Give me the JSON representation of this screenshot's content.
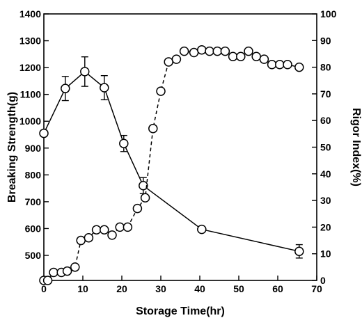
{
  "chart_data": {
    "type": "line",
    "xlabel": "Storage Time(hr)",
    "ylabel_left": "Breaking Strength(g)",
    "ylabel_right": "Rigor Index(%)",
    "xlim": [
      0,
      70
    ],
    "ylim_left": [
      500,
      1400
    ],
    "ylim_right": [
      0,
      100
    ],
    "x_ticks": [
      0,
      10,
      20,
      30,
      40,
      50,
      60,
      70
    ],
    "y_left_ticks": [
      500,
      600,
      700,
      800,
      900,
      1000,
      1100,
      1200,
      1300,
      1400
    ],
    "y_right_ticks": [
      0,
      10,
      20,
      30,
      40,
      50,
      60,
      70,
      80,
      90,
      100
    ],
    "grid": false,
    "series": [
      {
        "axis": "left",
        "style": "solid",
        "marker": "open-circle",
        "x": [
          0,
          5.5,
          10.5,
          15.5,
          20.5,
          25.5,
          40.5,
          65.5
        ],
        "y": [
          955,
          1122,
          1185,
          1125,
          917,
          760,
          597,
          515
        ],
        "err": [
          0,
          45,
          55,
          45,
          30,
          30,
          0,
          25
        ]
      },
      {
        "axis": "right",
        "style": "dashed",
        "marker": "open-circle",
        "x": [
          0,
          1,
          2.5,
          4.5,
          6,
          8,
          9.5,
          11.5,
          13.5,
          15.5,
          17.5,
          19.5,
          21.5,
          24,
          26,
          28,
          30,
          32,
          34,
          36,
          38.5,
          40.5,
          42.5,
          44.5,
          46.5,
          48.5,
          50.5,
          52.5,
          54.5,
          56.5,
          58.5,
          60.5,
          62.5,
          65.5
        ],
        "y": [
          0,
          0,
          3,
          3,
          3.5,
          5,
          15,
          16,
          19,
          19,
          17,
          20,
          20,
          27,
          31,
          57,
          71,
          82,
          83,
          86,
          85.5,
          86.5,
          86,
          86,
          86,
          84,
          84,
          86,
          84,
          83,
          81,
          81,
          81,
          80
        ]
      }
    ]
  }
}
